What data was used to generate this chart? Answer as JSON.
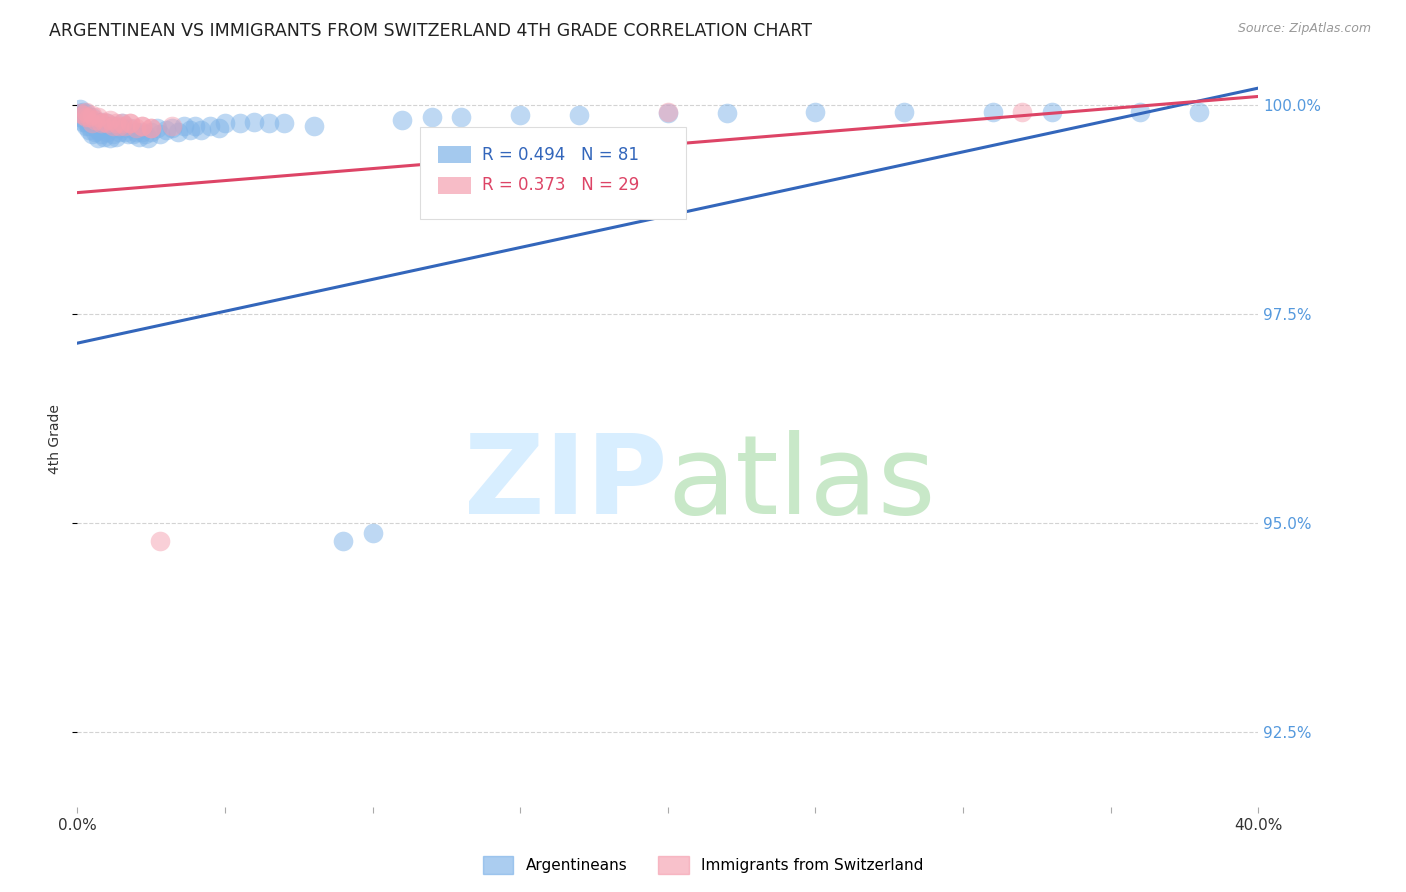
{
  "title": "ARGENTINEAN VS IMMIGRANTS FROM SWITZERLAND 4TH GRADE CORRELATION CHART",
  "source": "Source: ZipAtlas.com",
  "ylabel": "4th Grade",
  "xlim": [
    0.0,
    0.4
  ],
  "ylim": [
    0.916,
    1.004
  ],
  "yticks": [
    0.925,
    0.95,
    0.975,
    1.0
  ],
  "ytick_labels": [
    "92.5%",
    "95.0%",
    "97.5%",
    "100.0%"
  ],
  "xticks": [
    0.0,
    0.05,
    0.1,
    0.15,
    0.2,
    0.25,
    0.3,
    0.35,
    0.4
  ],
  "xtick_labels": [
    "0.0%",
    "",
    "",
    "",
    "",
    "",
    "",
    "",
    "40.0%"
  ],
  "blue_R": 0.494,
  "blue_N": 81,
  "pink_R": 0.373,
  "pink_N": 29,
  "blue_color": "#7EB3E8",
  "pink_color": "#F5A0B0",
  "blue_line_color": "#3366BB",
  "pink_line_color": "#DD4466",
  "grid_color": "#C8C8C8",
  "watermark_zip_color": "#D8EEFF",
  "watermark_atlas_color": "#C8E8C8",
  "background_color": "#FFFFFF",
  "title_fontsize": 12.5,
  "axis_label_fontsize": 10,
  "tick_fontsize": 11,
  "right_tick_color": "#5599DD",
  "legend_blue_text_color": "#3366BB",
  "legend_pink_text_color": "#DD4466",
  "blue_trend_x0": 0.0,
  "blue_trend_y0": 0.9715,
  "blue_trend_x1": 0.4,
  "blue_trend_y1": 1.002,
  "pink_trend_x0": 0.0,
  "pink_trend_y0": 0.9895,
  "pink_trend_x1": 0.4,
  "pink_trend_y1": 1.001,
  "blue_scatter_x": [
    0.001,
    0.001,
    0.001,
    0.002,
    0.002,
    0.002,
    0.003,
    0.003,
    0.003,
    0.003,
    0.004,
    0.004,
    0.004,
    0.004,
    0.005,
    0.005,
    0.005,
    0.006,
    0.006,
    0.006,
    0.007,
    0.007,
    0.007,
    0.008,
    0.008,
    0.008,
    0.009,
    0.009,
    0.01,
    0.01,
    0.011,
    0.011,
    0.012,
    0.012,
    0.013,
    0.013,
    0.014,
    0.015,
    0.015,
    0.016,
    0.017,
    0.018,
    0.019,
    0.02,
    0.021,
    0.022,
    0.023,
    0.024,
    0.025,
    0.027,
    0.028,
    0.03,
    0.032,
    0.034,
    0.036,
    0.038,
    0.04,
    0.042,
    0.045,
    0.048,
    0.05,
    0.055,
    0.06,
    0.065,
    0.07,
    0.08,
    0.09,
    0.1,
    0.11,
    0.12,
    0.13,
    0.15,
    0.17,
    0.2,
    0.22,
    0.25,
    0.28,
    0.31,
    0.33,
    0.36,
    0.38
  ],
  "blue_scatter_y": [
    0.9985,
    0.999,
    0.9995,
    0.998,
    0.9988,
    0.9992,
    0.9975,
    0.998,
    0.9985,
    0.999,
    0.997,
    0.9975,
    0.998,
    0.9985,
    0.9965,
    0.9978,
    0.9985,
    0.9968,
    0.9975,
    0.998,
    0.996,
    0.997,
    0.9978,
    0.9965,
    0.9972,
    0.998,
    0.9962,
    0.9975,
    0.9968,
    0.9978,
    0.996,
    0.9972,
    0.9965,
    0.9975,
    0.9962,
    0.9972,
    0.9968,
    0.9972,
    0.9978,
    0.9968,
    0.9965,
    0.9972,
    0.9965,
    0.9968,
    0.9962,
    0.9968,
    0.9965,
    0.996,
    0.9968,
    0.9972,
    0.9965,
    0.997,
    0.9972,
    0.9968,
    0.9975,
    0.997,
    0.9975,
    0.997,
    0.9975,
    0.9972,
    0.9978,
    0.9978,
    0.998,
    0.9978,
    0.9978,
    0.9975,
    0.9478,
    0.9488,
    0.9982,
    0.9985,
    0.9985,
    0.9988,
    0.9988,
    0.999,
    0.999,
    0.9992,
    0.9992,
    0.9992,
    0.9992,
    0.9992,
    0.9992
  ],
  "pink_scatter_x": [
    0.001,
    0.002,
    0.003,
    0.003,
    0.004,
    0.005,
    0.005,
    0.006,
    0.007,
    0.008,
    0.009,
    0.01,
    0.011,
    0.012,
    0.013,
    0.014,
    0.015,
    0.016,
    0.018,
    0.02,
    0.022,
    0.025,
    0.028,
    0.032,
    0.025,
    0.022,
    0.018,
    0.2,
    0.32
  ],
  "pink_scatter_y": [
    0.999,
    0.9988,
    0.9985,
    0.9992,
    0.9985,
    0.9978,
    0.9988,
    0.9982,
    0.9985,
    0.9978,
    0.998,
    0.9978,
    0.9982,
    0.9975,
    0.9978,
    0.9975,
    0.9978,
    0.9975,
    0.9978,
    0.9972,
    0.9975,
    0.9972,
    0.9478,
    0.9975,
    0.9972,
    0.9975,
    0.9978,
    0.9992,
    0.9992
  ]
}
